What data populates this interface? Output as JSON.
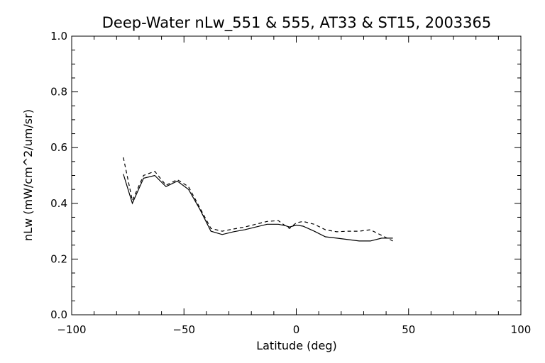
{
  "chart_data": {
    "type": "line",
    "title": "Deep-Water nLw_551 & 555, AT33 & ST15, 2003365",
    "xlabel": "Latitude (deg)",
    "ylabel": "nLw (mW/cm^2/um/sr)",
    "xlim": [
      -100,
      100
    ],
    "ylim": [
      0.0,
      1.0
    ],
    "xticks": [
      -100,
      -50,
      0,
      50,
      100
    ],
    "xtick_labels": [
      "−100",
      "−50",
      "0",
      "50",
      "100"
    ],
    "yticks": [
      0.0,
      0.2,
      0.4,
      0.6,
      0.8,
      1.0
    ],
    "ytick_labels": [
      "0.0",
      "0.2",
      "0.4",
      "0.6",
      "0.8",
      "1.0"
    ],
    "grid": false,
    "legend": "none",
    "series": [
      {
        "style": "solid",
        "color": "#000000",
        "x": [
          -77,
          -73,
          -68,
          -63,
          -58,
          -53,
          -48,
          -43,
          -38,
          -33,
          -28,
          -23,
          -18,
          -13,
          -8,
          -5,
          -3,
          0,
          3,
          8,
          13,
          18,
          23,
          28,
          33,
          38,
          43
        ],
        "y": [
          0.505,
          0.4,
          0.49,
          0.5,
          0.46,
          0.48,
          0.45,
          0.38,
          0.3,
          0.288,
          0.298,
          0.305,
          0.315,
          0.325,
          0.325,
          0.32,
          0.315,
          0.322,
          0.318,
          0.3,
          0.28,
          0.275,
          0.27,
          0.265,
          0.265,
          0.275,
          0.275
        ]
      },
      {
        "style": "dashed",
        "color": "#000000",
        "x": [
          -77,
          -73,
          -68,
          -63,
          -58,
          -53,
          -48,
          -43,
          -38,
          -33,
          -28,
          -23,
          -18,
          -13,
          -8,
          -5,
          -3,
          0,
          3,
          8,
          13,
          18,
          23,
          28,
          33,
          38,
          43
        ],
        "y": [
          0.565,
          0.41,
          0.5,
          0.515,
          0.465,
          0.485,
          0.46,
          0.385,
          0.31,
          0.3,
          0.308,
          0.315,
          0.325,
          0.335,
          0.338,
          0.32,
          0.31,
          0.33,
          0.335,
          0.325,
          0.305,
          0.298,
          0.3,
          0.3,
          0.305,
          0.285,
          0.265
        ]
      }
    ]
  }
}
